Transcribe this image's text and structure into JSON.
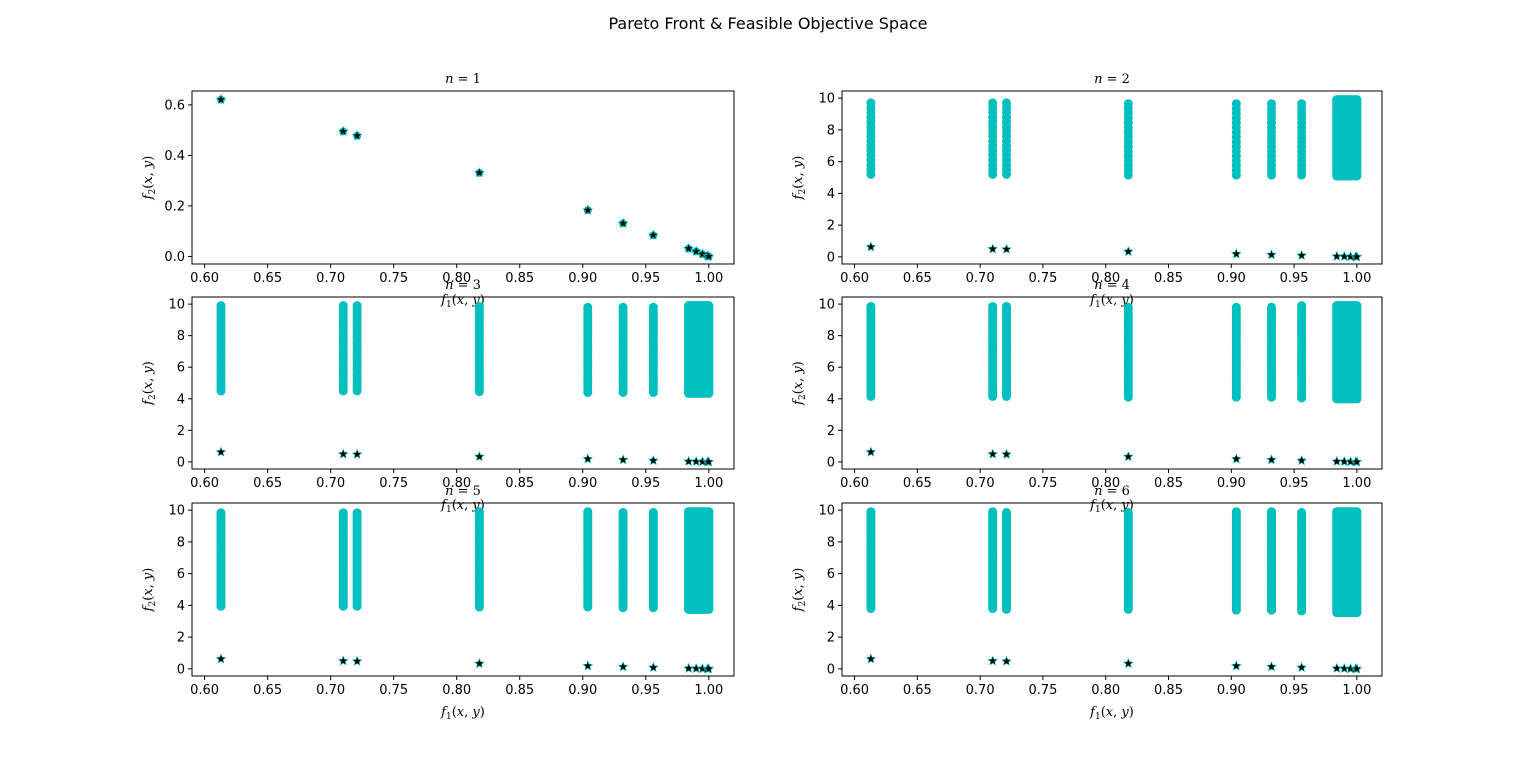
{
  "figure": {
    "suptitle": "Pareto Front & Feasible Objective Space"
  },
  "colors": {
    "feasible": "#00bfbf",
    "pareto": "#000000",
    "axes": "#000000"
  },
  "chart_data": [
    {
      "type": "scatter",
      "title": "n = 1",
      "xlabel": "f1(x, y)",
      "ylabel": "f2(x, y)",
      "xlim": [
        0.59,
        1.02
      ],
      "ylim": [
        -0.03,
        0.655
      ],
      "xticks": [
        "0.60",
        "0.65",
        "0.70",
        "0.75",
        "0.80",
        "0.85",
        "0.90",
        "0.95",
        "1.00"
      ],
      "yticks": [
        "0.0",
        "0.2",
        "0.4",
        "0.6"
      ],
      "series": [
        {
          "kind": "feasible",
          "marker": "circle",
          "points": [
            [
              0.613,
              0.621
            ],
            [
              0.71,
              0.495
            ],
            [
              0.721,
              0.478
            ],
            [
              0.818,
              0.331
            ],
            [
              0.904,
              0.183
            ],
            [
              0.932,
              0.131
            ],
            [
              0.956,
              0.084
            ],
            [
              0.984,
              0.031
            ],
            [
              0.99,
              0.02
            ],
            [
              0.995,
              0.009
            ],
            [
              0.999,
              0.002
            ],
            [
              1.0,
              0.0
            ]
          ]
        },
        {
          "kind": "pareto",
          "marker": "star",
          "points": [
            [
              0.613,
              0.621
            ],
            [
              0.71,
              0.495
            ],
            [
              0.721,
              0.478
            ],
            [
              0.818,
              0.331
            ],
            [
              0.904,
              0.183
            ],
            [
              0.932,
              0.131
            ],
            [
              0.956,
              0.084
            ],
            [
              0.984,
              0.031
            ],
            [
              0.99,
              0.02
            ],
            [
              0.995,
              0.009
            ],
            [
              0.999,
              0.002
            ],
            [
              1.0,
              0.0
            ]
          ]
        }
      ]
    },
    {
      "type": "scatter",
      "title": "n = 2",
      "xlabel": "f1(x, y)",
      "ylabel": "f2(x, y)",
      "xlim": [
        0.59,
        1.02
      ],
      "ylim": [
        -0.45,
        10.45
      ],
      "xticks": [
        "0.60",
        "0.65",
        "0.70",
        "0.75",
        "0.80",
        "0.85",
        "0.90",
        "0.95",
        "1.00"
      ],
      "yticks": [
        "0",
        "2",
        "4",
        "6",
        "8",
        "10"
      ],
      "feasible_columns": {
        "x": [
          0.613,
          0.71,
          0.721,
          0.818,
          0.904,
          0.932,
          0.956
        ],
        "min": [
          5.2,
          5.2,
          5.2,
          5.15,
          5.15,
          5.15,
          5.15
        ],
        "max": [
          9.9,
          9.9,
          9.9,
          9.9,
          9.9,
          9.9,
          9.9
        ],
        "step": 0.3
      },
      "feasible_band": {
        "x_from": 0.984,
        "x_to": 1.0,
        "min": 5.1,
        "max": 9.9
      },
      "pareto_points": [
        [
          0.613,
          0.621
        ],
        [
          0.71,
          0.495
        ],
        [
          0.721,
          0.478
        ],
        [
          0.818,
          0.331
        ],
        [
          0.904,
          0.183
        ],
        [
          0.932,
          0.131
        ],
        [
          0.956,
          0.084
        ],
        [
          0.984,
          0.031
        ],
        [
          0.99,
          0.02
        ],
        [
          0.995,
          0.009
        ],
        [
          0.999,
          0.002
        ],
        [
          1.0,
          0.0
        ]
      ]
    },
    {
      "type": "scatter",
      "title": "n = 3",
      "xlabel": "f1(x, y)",
      "ylabel": "f2(x, y)",
      "xlim": [
        0.59,
        1.02
      ],
      "ylim": [
        -0.45,
        10.45
      ],
      "xticks": [
        "0.60",
        "0.65",
        "0.70",
        "0.75",
        "0.80",
        "0.85",
        "0.90",
        "0.95",
        "1.00"
      ],
      "yticks": [
        "0",
        "2",
        "4",
        "6",
        "8",
        "10"
      ],
      "feasible_columns": {
        "x": [
          0.613,
          0.71,
          0.721,
          0.818,
          0.904,
          0.932,
          0.956
        ],
        "min": [
          4.5,
          4.5,
          4.5,
          4.45,
          4.4,
          4.4,
          4.4
        ],
        "max": [
          9.9,
          9.9,
          9.9,
          9.9,
          9.9,
          9.9,
          9.9
        ],
        "step": 0.2
      },
      "feasible_band": {
        "x_from": 0.984,
        "x_to": 1.0,
        "min": 4.35,
        "max": 9.9
      },
      "pareto_points": [
        [
          0.613,
          0.621
        ],
        [
          0.71,
          0.495
        ],
        [
          0.721,
          0.478
        ],
        [
          0.818,
          0.331
        ],
        [
          0.904,
          0.183
        ],
        [
          0.932,
          0.131
        ],
        [
          0.956,
          0.084
        ],
        [
          0.984,
          0.031
        ],
        [
          0.99,
          0.02
        ],
        [
          0.995,
          0.009
        ],
        [
          0.999,
          0.002
        ],
        [
          1.0,
          0.0
        ]
      ]
    },
    {
      "type": "scatter",
      "title": "n = 4",
      "xlabel": "f1(x, y)",
      "ylabel": "f2(x, y)",
      "xlim": [
        0.59,
        1.02
      ],
      "ylim": [
        -0.45,
        10.45
      ],
      "xticks": [
        "0.60",
        "0.65",
        "0.70",
        "0.75",
        "0.80",
        "0.85",
        "0.90",
        "0.95",
        "1.00"
      ],
      "yticks": [
        "0",
        "2",
        "4",
        "6",
        "8",
        "10"
      ],
      "feasible_columns": {
        "x": [
          0.613,
          0.71,
          0.721,
          0.818,
          0.904,
          0.932,
          0.956
        ],
        "min": [
          4.15,
          4.15,
          4.15,
          4.1,
          4.1,
          4.1,
          4.05
        ],
        "max": [
          9.9,
          9.9,
          9.9,
          9.9,
          9.9,
          9.9,
          9.9
        ],
        "step": 0.15
      },
      "feasible_band": {
        "x_from": 0.984,
        "x_to": 1.0,
        "min": 4.0,
        "max": 9.9
      },
      "pareto_points": [
        [
          0.613,
          0.621
        ],
        [
          0.71,
          0.495
        ],
        [
          0.721,
          0.478
        ],
        [
          0.818,
          0.331
        ],
        [
          0.904,
          0.183
        ],
        [
          0.932,
          0.131
        ],
        [
          0.956,
          0.084
        ],
        [
          0.984,
          0.031
        ],
        [
          0.99,
          0.02
        ],
        [
          0.995,
          0.009
        ],
        [
          0.999,
          0.002
        ],
        [
          1.0,
          0.0
        ]
      ]
    },
    {
      "type": "scatter",
      "title": "n = 5",
      "xlabel": "f1(x, y)",
      "ylabel": "f2(x, y)",
      "xlim": [
        0.59,
        1.02
      ],
      "ylim": [
        -0.45,
        10.45
      ],
      "xticks": [
        "0.60",
        "0.65",
        "0.70",
        "0.75",
        "0.80",
        "0.85",
        "0.90",
        "0.95",
        "1.00"
      ],
      "yticks": [
        "0",
        "2",
        "4",
        "6",
        "8",
        "10"
      ],
      "feasible_columns": {
        "x": [
          0.613,
          0.71,
          0.721,
          0.818,
          0.904,
          0.932,
          0.956
        ],
        "min": [
          3.95,
          3.95,
          3.95,
          3.9,
          3.9,
          3.85,
          3.85
        ],
        "max": [
          9.9,
          9.9,
          9.9,
          9.9,
          9.9,
          9.9,
          9.9
        ],
        "step": 0.12
      },
      "feasible_band": {
        "x_from": 0.984,
        "x_to": 1.0,
        "min": 3.75,
        "max": 9.9
      },
      "pareto_points": [
        [
          0.613,
          0.621
        ],
        [
          0.71,
          0.495
        ],
        [
          0.721,
          0.478
        ],
        [
          0.818,
          0.331
        ],
        [
          0.904,
          0.183
        ],
        [
          0.932,
          0.131
        ],
        [
          0.956,
          0.084
        ],
        [
          0.984,
          0.031
        ],
        [
          0.99,
          0.02
        ],
        [
          0.995,
          0.009
        ],
        [
          0.999,
          0.002
        ],
        [
          1.0,
          0.0
        ]
      ]
    },
    {
      "type": "scatter",
      "title": "n = 6",
      "xlabel": "f1(x, y)",
      "ylabel": "f2(x, y)",
      "xlim": [
        0.59,
        1.02
      ],
      "ylim": [
        -0.45,
        10.45
      ],
      "xticks": [
        "0.60",
        "0.65",
        "0.70",
        "0.75",
        "0.80",
        "0.85",
        "0.90",
        "0.95",
        "1.00"
      ],
      "yticks": [
        "0",
        "2",
        "4",
        "6",
        "8",
        "10"
      ],
      "feasible_columns": {
        "x": [
          0.613,
          0.71,
          0.721,
          0.818,
          0.904,
          0.932,
          0.956
        ],
        "min": [
          3.8,
          3.8,
          3.75,
          3.75,
          3.7,
          3.7,
          3.65
        ],
        "max": [
          9.9,
          9.9,
          9.9,
          9.9,
          9.9,
          9.9,
          9.9
        ],
        "step": 0.1
      },
      "feasible_band": {
        "x_from": 0.984,
        "x_to": 1.0,
        "min": 3.55,
        "max": 9.9
      },
      "pareto_points": [
        [
          0.613,
          0.621
        ],
        [
          0.71,
          0.495
        ],
        [
          0.721,
          0.478
        ],
        [
          0.818,
          0.331
        ],
        [
          0.904,
          0.183
        ],
        [
          0.932,
          0.131
        ],
        [
          0.956,
          0.084
        ],
        [
          0.984,
          0.031
        ],
        [
          0.99,
          0.02
        ],
        [
          0.995,
          0.009
        ],
        [
          0.999,
          0.002
        ],
        [
          1.0,
          0.0
        ]
      ]
    }
  ]
}
